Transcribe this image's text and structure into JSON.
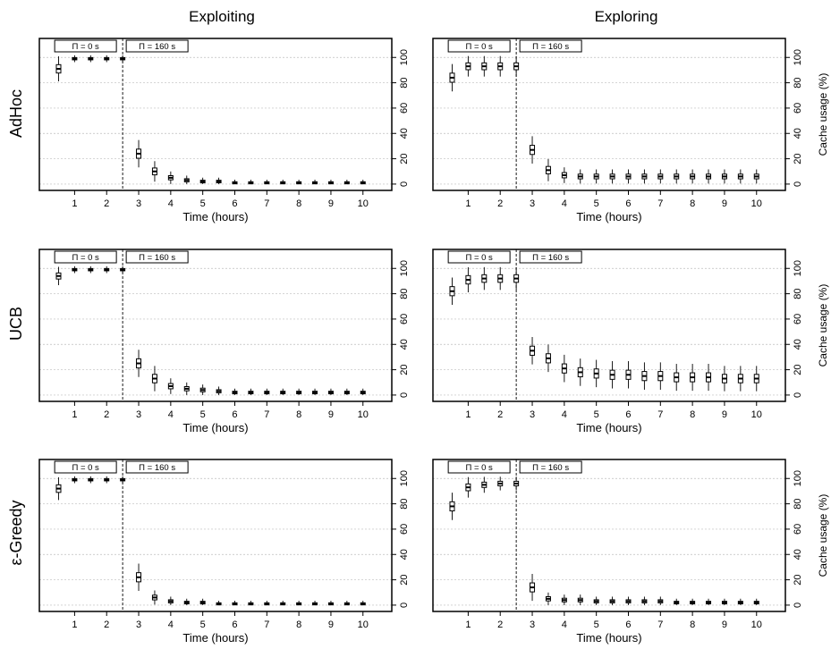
{
  "figure": {
    "column_titles": [
      "Exploiting",
      "Exploring"
    ],
    "row_labels": [
      "AdHoc",
      "UCB",
      "ε-Greedy"
    ]
  },
  "chart_data": [
    {
      "type": "box",
      "strategy": "AdHoc",
      "scenario": "Exploiting",
      "xlabel": "Time (hours)",
      "ylabel": "",
      "ylim": [
        -5,
        115
      ],
      "yticks": [
        0,
        20,
        40,
        60,
        80,
        100
      ],
      "xlim": [
        -0.1,
        10.9
      ],
      "xticks": [
        1,
        2,
        3,
        4,
        5,
        6,
        7,
        8,
        9,
        10
      ],
      "grid": "horizontal dotted",
      "threshold_time": 2.5,
      "annotations": [
        "Π = 0 s",
        "Π = 160 s"
      ],
      "x": [
        0.5,
        1,
        1.5,
        2,
        2.5,
        3,
        3.5,
        4,
        4.5,
        5,
        5.5,
        6,
        6.5,
        7,
        7.5,
        8,
        8.5,
        9,
        9.5,
        10
      ],
      "median": [
        91,
        99,
        99,
        99,
        99,
        24,
        10,
        5,
        3,
        2,
        2,
        1,
        1,
        1,
        1,
        1,
        1,
        1,
        1,
        1
      ]
    },
    {
      "type": "box",
      "strategy": "AdHoc",
      "scenario": "Exploring",
      "xlabel": "Time (hours)",
      "ylabel": "Cache usage (%)",
      "ylim": [
        -5,
        115
      ],
      "yticks": [
        0,
        20,
        40,
        60,
        80,
        100
      ],
      "xlim": [
        -0.1,
        10.9
      ],
      "xticks": [
        1,
        2,
        3,
        4,
        5,
        6,
        7,
        8,
        9,
        10
      ],
      "grid": "horizontal dotted",
      "threshold_time": 2.5,
      "annotations": [
        "Π = 0 s",
        "Π = 160 s"
      ],
      "x": [
        0.5,
        1,
        1.5,
        2,
        2.5,
        3,
        3.5,
        4,
        4.5,
        5,
        5.5,
        6,
        6.5,
        7,
        7.5,
        8,
        8.5,
        9,
        9.5,
        10
      ],
      "median": [
        84,
        93,
        93,
        93,
        93,
        27,
        11,
        7,
        6,
        6,
        6,
        6,
        6,
        6,
        6,
        6,
        6,
        6,
        6,
        6
      ]
    },
    {
      "type": "box",
      "strategy": "UCB",
      "scenario": "Exploiting",
      "xlabel": "Time (hours)",
      "ylabel": "",
      "ylim": [
        -5,
        115
      ],
      "yticks": [
        0,
        20,
        40,
        60,
        80,
        100
      ],
      "xlim": [
        -0.1,
        10.9
      ],
      "xticks": [
        1,
        2,
        3,
        4,
        5,
        6,
        7,
        8,
        9,
        10
      ],
      "grid": "horizontal dotted",
      "threshold_time": 2.5,
      "annotations": [
        "Π = 0 s",
        "Π = 160 s"
      ],
      "x": [
        0.5,
        1,
        1.5,
        2,
        2.5,
        3,
        3.5,
        4,
        4.5,
        5,
        5.5,
        6,
        6.5,
        7,
        7.5,
        8,
        8.5,
        9,
        9.5,
        10
      ],
      "median": [
        94,
        99,
        99,
        99,
        99,
        25,
        13,
        7,
        5,
        4,
        3,
        2,
        2,
        2,
        2,
        2,
        2,
        2,
        2,
        2
      ]
    },
    {
      "type": "box",
      "strategy": "UCB",
      "scenario": "Exploring",
      "xlabel": "Time (hours)",
      "ylabel": "Cache usage (%)",
      "ylim": [
        -5,
        115
      ],
      "yticks": [
        0,
        20,
        40,
        60,
        80,
        100
      ],
      "xlim": [
        -0.1,
        10.9
      ],
      "xticks": [
        1,
        2,
        3,
        4,
        5,
        6,
        7,
        8,
        9,
        10
      ],
      "grid": "horizontal dotted",
      "threshold_time": 2.5,
      "annotations": [
        "Π = 0 s",
        "Π = 160 s"
      ],
      "x": [
        0.5,
        1,
        1.5,
        2,
        2.5,
        3,
        3.5,
        4,
        4.5,
        5,
        5.5,
        6,
        6.5,
        7,
        7.5,
        8,
        8.5,
        9,
        9.5,
        10
      ],
      "median": [
        82,
        91,
        92,
        92,
        92,
        35,
        29,
        21,
        18,
        17,
        16,
        16,
        15,
        15,
        14,
        14,
        14,
        13,
        13,
        13
      ]
    },
    {
      "type": "box",
      "strategy": "ε-Greedy",
      "scenario": "Exploiting",
      "xlabel": "Time (hours)",
      "ylabel": "",
      "ylim": [
        -5,
        115
      ],
      "yticks": [
        0,
        20,
        40,
        60,
        80,
        100
      ],
      "xlim": [
        -0.1,
        10.9
      ],
      "xticks": [
        1,
        2,
        3,
        4,
        5,
        6,
        7,
        8,
        9,
        10
      ],
      "grid": "horizontal dotted",
      "threshold_time": 2.5,
      "annotations": [
        "Π = 0 s",
        "Π = 160 s"
      ],
      "x": [
        0.5,
        1,
        1.5,
        2,
        2.5,
        3,
        3.5,
        4,
        4.5,
        5,
        5.5,
        6,
        6.5,
        7,
        7.5,
        8,
        8.5,
        9,
        9.5,
        10
      ],
      "median": [
        92,
        99,
        99,
        99,
        99,
        22,
        6,
        3,
        2,
        2,
        1,
        1,
        1,
        1,
        1,
        1,
        1,
        1,
        1,
        1
      ]
    },
    {
      "type": "box",
      "strategy": "ε-Greedy",
      "scenario": "Exploring",
      "xlabel": "Time (hours)",
      "ylabel": "Cache usage (%)",
      "ylim": [
        -5,
        115
      ],
      "yticks": [
        0,
        20,
        40,
        60,
        80,
        100
      ],
      "xlim": [
        -0.1,
        10.9
      ],
      "xticks": [
        1,
        2,
        3,
        4,
        5,
        6,
        7,
        8,
        9,
        10
      ],
      "grid": "horizontal dotted",
      "threshold_time": 2.5,
      "annotations": [
        "Π = 0 s",
        "Π = 160 s"
      ],
      "x": [
        0.5,
        1,
        1.5,
        2,
        2.5,
        3,
        3.5,
        4,
        4.5,
        5,
        5.5,
        6,
        6.5,
        7,
        7.5,
        8,
        8.5,
        9,
        9.5,
        10
      ],
      "median": [
        78,
        93,
        95,
        96,
        96,
        14,
        5,
        4,
        4,
        3,
        3,
        3,
        3,
        3,
        2,
        2,
        2,
        2,
        2,
        2
      ]
    }
  ]
}
